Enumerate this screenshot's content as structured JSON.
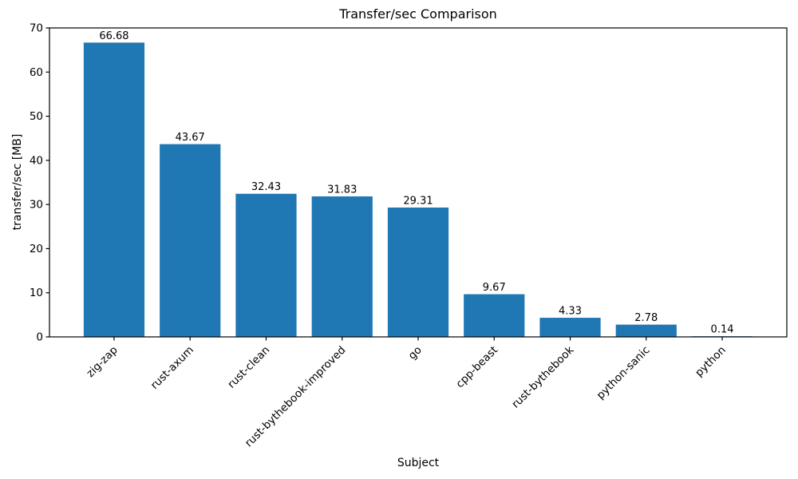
{
  "figure": {
    "background": "#ffffff",
    "text_color": "#000000",
    "axis_color": "#000000"
  },
  "chart_data": {
    "type": "bar",
    "title": "Transfer/sec Comparison",
    "xlabel": "Subject",
    "ylabel": "transfer/sec [MB]",
    "categories": [
      "zig-zap",
      "rust-axum",
      "rust-clean",
      "rust-bythebook-improved",
      "go",
      "cpp-beast",
      "rust-bythebook",
      "python-sanic",
      "python"
    ],
    "values": [
      66.68,
      43.67,
      32.43,
      31.83,
      29.31,
      9.67,
      4.33,
      2.78,
      0.14
    ],
    "value_labels": [
      "66.68",
      "43.67",
      "32.43",
      "31.83",
      "29.31",
      "9.67",
      "4.33",
      "2.78",
      "0.14"
    ],
    "ylim": [
      0,
      70
    ],
    "yticks": [
      0,
      10,
      20,
      30,
      40,
      50,
      60,
      70
    ],
    "bar_color": "#1f77b4",
    "grid": false,
    "legend_position": "none",
    "x_tick_rotation_deg": 45
  }
}
